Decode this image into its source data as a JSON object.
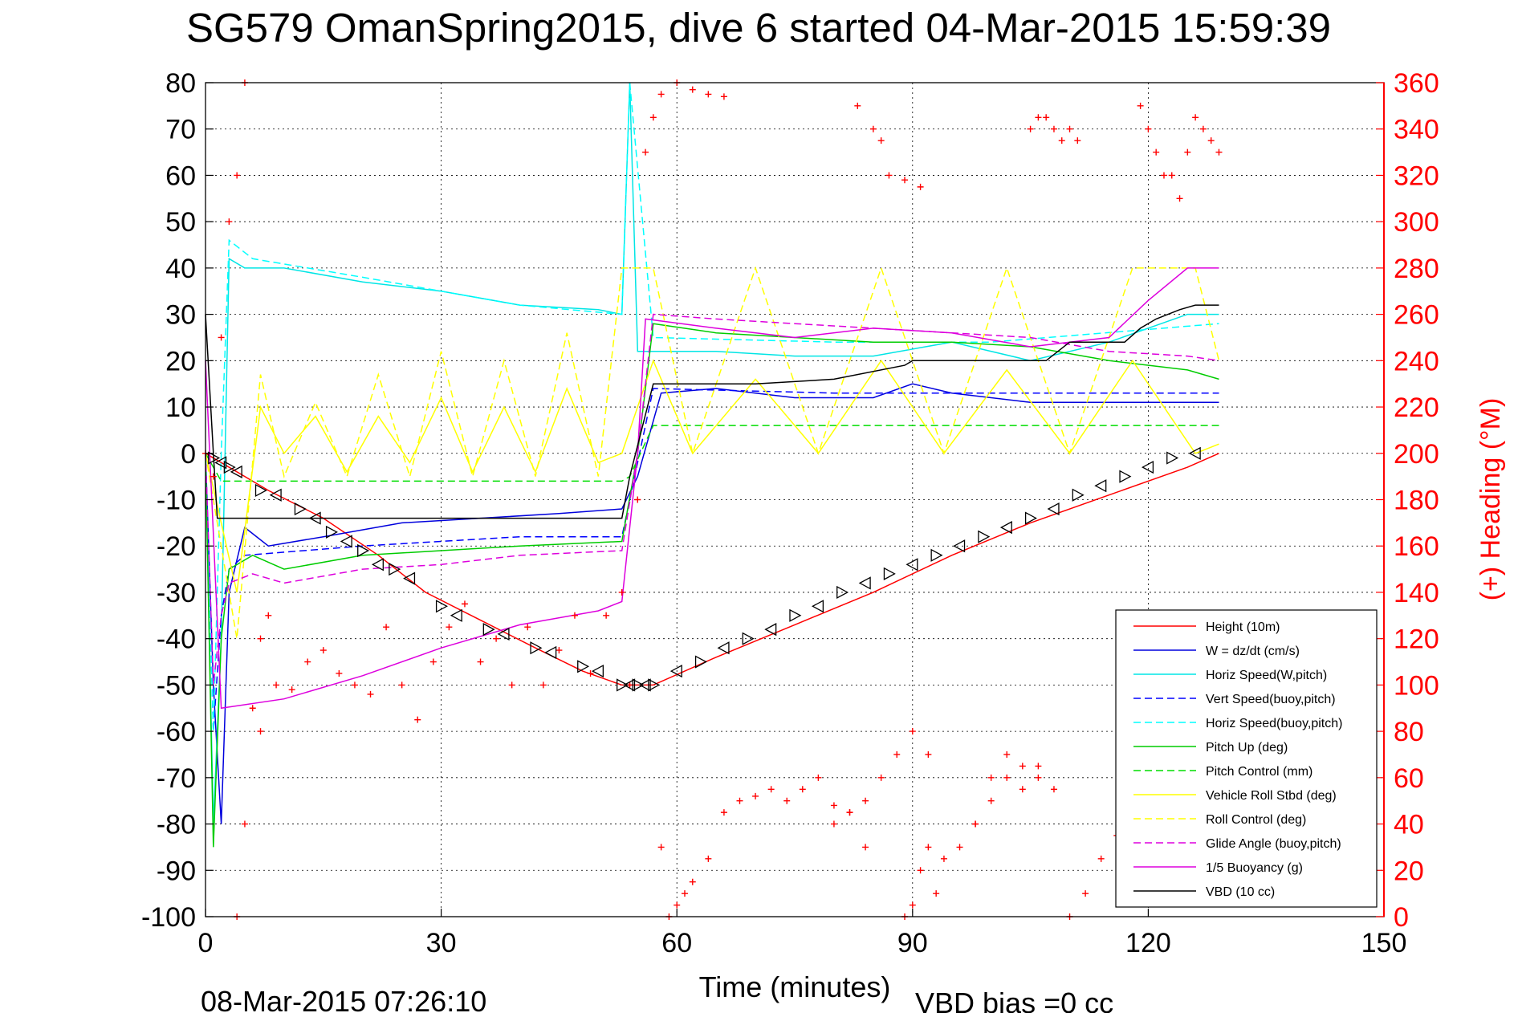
{
  "chart_data": {
    "type": "line",
    "title": "SG579 OmanSpring2015, dive 6 started 04-Mar-2015 15:59:39",
    "xlabel": "Time (minutes)",
    "ylabel_right": "(+) Heading (°M)",
    "footer_left": "08-Mar-2015 07:26:10",
    "footer_right": "VBD bias =0 cc",
    "xlim": [
      0,
      150
    ],
    "ylim_left": [
      -100,
      80
    ],
    "ylim_right": [
      0,
      360
    ],
    "x_ticks": [
      0,
      30,
      60,
      90,
      120,
      150
    ],
    "y_ticks_left": [
      80,
      70,
      60,
      50,
      40,
      30,
      20,
      10,
      0,
      -10,
      -20,
      -30,
      -40,
      -50,
      -60,
      -70,
      -80,
      -90,
      -100
    ],
    "y_ticks_right": [
      360,
      340,
      320,
      300,
      280,
      260,
      240,
      220,
      200,
      180,
      160,
      140,
      120,
      100,
      80,
      60,
      40,
      20,
      0
    ],
    "grid": true,
    "legend_position": "lower-right",
    "colors": {
      "height": "#ff0000",
      "w": "#0000dd",
      "horiz_speed": "#00e5e5",
      "vert_speed_buoy": "#0000ff",
      "horiz_speed_buoy": "#00ffff",
      "pitch_up": "#00cc00",
      "pitch_control": "#00dd00",
      "roll": "#ffff00",
      "roll_control": "#ffff00",
      "glide_angle": "#dd00dd",
      "buoyancy": "#dd00dd",
      "vbd": "#000000",
      "heading": "#ff0000"
    },
    "series": [
      {
        "name": "Height (10m)",
        "key": "height",
        "style": "solid",
        "x": [
          0,
          2,
          8,
          15,
          22,
          28,
          35,
          42,
          48,
          53,
          57,
          65,
          75,
          85,
          95,
          105,
          115,
          125,
          129
        ],
        "y": [
          0,
          -2,
          -8,
          -14,
          -22,
          -30,
          -36,
          -42,
          -47,
          -50,
          -50,
          -44,
          -37,
          -30,
          -22,
          -15,
          -9,
          -3,
          0
        ]
      },
      {
        "name": "W = dz/dt (cm/s)",
        "key": "w",
        "style": "solid",
        "x": [
          0,
          1,
          2,
          3,
          5,
          8,
          15,
          25,
          35,
          45,
          53,
          55,
          58,
          65,
          75,
          85,
          90,
          95,
          105,
          115,
          125,
          129
        ],
        "y": [
          0,
          -50,
          -80,
          -30,
          -16,
          -20,
          -18,
          -15,
          -14,
          -13,
          -12,
          -5,
          13,
          14,
          12,
          12,
          15,
          13,
          11,
          11,
          11,
          11
        ]
      },
      {
        "name": "Horiz Speed(W,pitch)",
        "key": "horiz_speed",
        "style": "solid",
        "x": [
          0,
          1,
          2,
          3,
          5,
          10,
          20,
          30,
          40,
          50,
          53,
          54,
          55,
          57,
          65,
          75,
          85,
          95,
          105,
          115,
          125,
          129
        ],
        "y": [
          0,
          -80,
          -40,
          42,
          40,
          40,
          37,
          35,
          32,
          31,
          30,
          80,
          22,
          22,
          22,
          21,
          21,
          24,
          20,
          24,
          30,
          30
        ]
      },
      {
        "name": "Vert Speed(buoy,pitch)",
        "key": "vert_speed_buoy",
        "style": "dashed",
        "x": [
          0,
          1,
          2,
          3,
          5,
          20,
          40,
          53,
          57,
          80,
          100,
          129
        ],
        "y": [
          0,
          -60,
          -35,
          -25,
          -22,
          -20,
          -18,
          -18,
          14,
          13,
          13,
          13
        ]
      },
      {
        "name": "Horiz Speed(buoy,pitch)",
        "key": "horiz_speed_buoy",
        "style": "dashed",
        "x": [
          0,
          1,
          2,
          3,
          6,
          20,
          40,
          53,
          54,
          57,
          80,
          100,
          129
        ],
        "y": [
          0,
          -60,
          0,
          46,
          42,
          38,
          32,
          30,
          80,
          25,
          24,
          24,
          28
        ]
      },
      {
        "name": "Pitch Up (deg)",
        "key": "pitch_up",
        "style": "solid",
        "x": [
          0,
          1,
          2,
          3,
          6,
          10,
          20,
          30,
          40,
          53,
          55,
          57,
          65,
          75,
          85,
          95,
          105,
          115,
          125,
          129
        ],
        "y": [
          0,
          -85,
          -40,
          -25,
          -22,
          -25,
          -22,
          -21,
          -20,
          -19,
          0,
          28,
          26,
          25,
          24,
          24,
          23,
          20,
          18,
          16
        ]
      },
      {
        "name": "Pitch Control (mm)",
        "key": "pitch_control",
        "style": "dashed",
        "x": [
          0,
          2,
          53,
          54,
          57,
          129
        ],
        "y": [
          0,
          -6,
          -6,
          -5,
          6,
          6
        ]
      },
      {
        "name": "Vehicle Roll Stbd (deg)",
        "key": "roll",
        "style": "solid",
        "x": [
          0,
          4,
          7,
          10,
          14,
          18,
          22,
          26,
          30,
          34,
          38,
          42,
          46,
          50,
          53,
          57,
          62,
          70,
          78,
          86,
          94,
          102,
          110,
          118,
          126,
          129
        ],
        "y": [
          0,
          -30,
          10,
          0,
          8,
          -4,
          8,
          -2,
          12,
          -4,
          10,
          -4,
          14,
          -2,
          0,
          20,
          0,
          16,
          0,
          20,
          0,
          18,
          0,
          20,
          0,
          2
        ]
      },
      {
        "name": "Roll Control (deg)",
        "key": "roll_control",
        "style": "dashed",
        "x": [
          0,
          4,
          7,
          10,
          14,
          18,
          22,
          26,
          30,
          34,
          38,
          42,
          46,
          50,
          53,
          57,
          62,
          70,
          78,
          86,
          94,
          102,
          110,
          118,
          126,
          129
        ],
        "y": [
          0,
          -40,
          17,
          -5,
          11,
          -5,
          17,
          -5,
          22,
          -5,
          20,
          -5,
          26,
          -5,
          40,
          40,
          0,
          40,
          0,
          40,
          0,
          40,
          0,
          40,
          40,
          20
        ]
      },
      {
        "name": "Glide Angle (buoy,pitch)",
        "key": "glide_angle",
        "style": "dashed",
        "x": [
          0,
          1,
          2,
          3,
          6,
          10,
          20,
          30,
          40,
          53,
          55,
          57,
          65,
          75,
          85,
          95,
          105,
          115,
          125,
          129
        ],
        "y": [
          0,
          -50,
          -35,
          -28,
          -26,
          -28,
          -25,
          -24,
          -22,
          -21,
          0,
          30,
          29,
          28,
          27,
          26,
          25,
          22,
          21,
          20
        ]
      },
      {
        "name": "1/5 Buoyancy (g)",
        "key": "buoyancy",
        "style": "solid",
        "x": [
          0,
          2,
          10,
          20,
          30,
          40,
          50,
          53,
          55,
          56,
          65,
          75,
          85,
          95,
          105,
          115,
          120,
          125,
          129
        ],
        "y": [
          20,
          -55,
          -53,
          -48,
          -42,
          -37,
          -34,
          -32,
          0,
          29,
          27,
          25,
          27,
          26,
          23,
          25,
          33,
          40,
          40
        ]
      },
      {
        "name": "VBD (10 cc)",
        "key": "vbd",
        "style": "solid",
        "x": [
          0,
          1,
          1.5,
          53,
          54,
          57,
          70,
          80,
          89,
          90,
          107,
          110,
          117,
          119,
          121,
          124,
          126,
          129
        ],
        "y": [
          30,
          0,
          -14,
          -14,
          -5,
          15,
          15,
          16,
          19,
          20,
          20,
          24,
          24,
          27,
          29,
          31,
          32,
          32
        ]
      }
    ],
    "heading": {
      "name": "(+) Heading (°M)",
      "marker": "+",
      "segments": [
        {
          "x": [
            0,
            1,
            2,
            3,
            4,
            5
          ],
          "y": [
            200,
            190,
            250,
            300,
            320,
            360
          ]
        },
        {
          "x": [
            4,
            5,
            6,
            7,
            8
          ],
          "y": [
            0,
            40,
            90,
            80,
            130
          ]
        },
        {
          "x": [
            7,
            9,
            11,
            13,
            15,
            17,
            19,
            21,
            23,
            25,
            27,
            29,
            31,
            33,
            35,
            37,
            39,
            41,
            43,
            45,
            47,
            49,
            51,
            53,
            54
          ],
          "y": [
            120,
            100,
            98,
            110,
            115,
            105,
            100,
            96,
            125,
            100,
            85,
            110,
            125,
            135,
            110,
            120,
            100,
            125,
            100,
            115,
            130,
            105,
            130,
            140,
            100
          ]
        },
        {
          "x": [
            54,
            55,
            56,
            57,
            58,
            60,
            62,
            64,
            66
          ],
          "y": [
            100,
            180,
            330,
            345,
            355,
            360,
            357,
            355,
            354
          ]
        },
        {
          "x": [
            58,
            59,
            60,
            61,
            62,
            64,
            66,
            68,
            70,
            72,
            74,
            76,
            78,
            80,
            82,
            84
          ],
          "y": [
            30,
            0,
            5,
            10,
            15,
            25,
            45,
            50,
            52,
            55,
            50,
            55,
            60,
            48,
            45,
            30
          ]
        },
        {
          "x": [
            80,
            82,
            84,
            86,
            88,
            90,
            92
          ],
          "y": [
            40,
            45,
            50,
            60,
            70,
            80,
            70
          ]
        },
        {
          "x": [
            83,
            85,
            86,
            87,
            89,
            91
          ],
          "y": [
            350,
            340,
            335,
            320,
            318,
            315
          ]
        },
        {
          "x": [
            89,
            90,
            91,
            92,
            93,
            94,
            96,
            98,
            100,
            102,
            104,
            106
          ],
          "y": [
            0,
            5,
            20,
            30,
            10,
            25,
            30,
            40,
            60,
            70,
            55,
            65
          ]
        },
        {
          "x": [
            98,
            100,
            102,
            104,
            106,
            108
          ],
          "y": [
            40,
            50,
            60,
            65,
            60,
            55
          ]
        },
        {
          "x": [
            105,
            106,
            107,
            108,
            109,
            110,
            111
          ],
          "y": [
            340,
            345,
            345,
            340,
            335,
            340,
            335
          ]
        },
        {
          "x": [
            110,
            112,
            114,
            116,
            118,
            120,
            122,
            124
          ],
          "y": [
            0,
            10,
            25,
            35,
            50,
            60,
            70,
            80
          ]
        },
        {
          "x": [
            119,
            120,
            121,
            122,
            123,
            124,
            125,
            126,
            127,
            128,
            129
          ],
          "y": [
            350,
            340,
            330,
            320,
            320,
            310,
            330,
            345,
            340,
            335,
            330
          ]
        }
      ]
    },
    "markers": {
      "x": [
        1,
        2,
        3,
        4,
        7,
        9,
        12,
        14,
        16,
        18,
        20,
        22,
        24,
        26,
        30,
        32,
        36,
        38,
        42,
        44,
        48,
        50,
        53,
        54,
        55,
        56,
        57,
        60,
        63,
        66,
        69,
        72,
        75,
        78,
        81,
        84,
        87,
        90,
        93,
        96,
        99,
        102,
        105,
        108,
        111,
        114,
        117,
        120,
        123,
        126
      ],
      "y": [
        -1,
        -2,
        -3,
        -4,
        -8,
        -9,
        -12,
        -14,
        -17,
        -19,
        -21,
        -24,
        -25,
        -27,
        -33,
        -35,
        -38,
        -39,
        -42,
        -43,
        -46,
        -47,
        -50,
        -50,
        -50,
        -50,
        -50,
        -47,
        -45,
        -42,
        -40,
        -38,
        -35,
        -33,
        -30,
        -28,
        -26,
        -24,
        -22,
        -20,
        -18,
        -16,
        -14,
        -12,
        -9,
        -7,
        -5,
        -3,
        -1,
        0
      ]
    }
  }
}
